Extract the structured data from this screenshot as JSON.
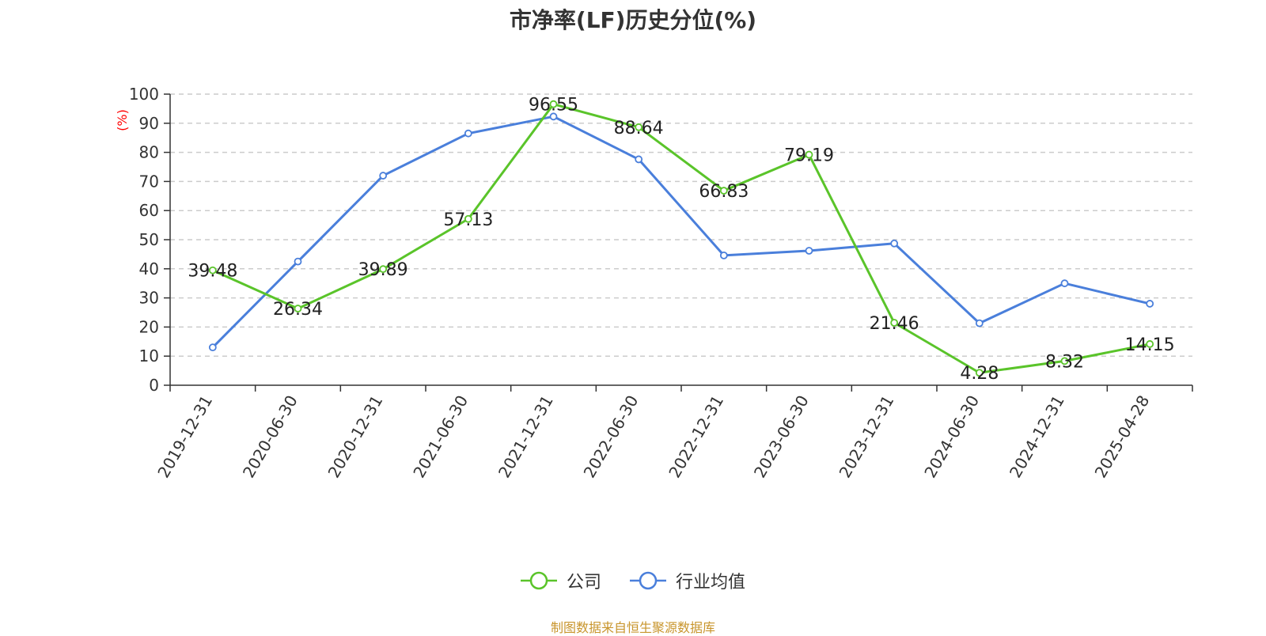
{
  "chart_data": {
    "type": "line",
    "title": "市净率(LF)历史分位(%)",
    "ylabel": "(%)",
    "ylim": [
      0,
      100
    ],
    "yticks": [
      0,
      10,
      20,
      30,
      40,
      50,
      60,
      70,
      80,
      90,
      100
    ],
    "grid": true,
    "legend_position": "bottom",
    "categories": [
      "2019-12-31",
      "2020-06-30",
      "2020-12-31",
      "2021-06-30",
      "2021-12-31",
      "2022-06-30",
      "2022-12-31",
      "2023-06-30",
      "2023-12-31",
      "2024-06-30",
      "2024-12-31",
      "2025-04-28"
    ],
    "series": [
      {
        "name": "公司",
        "color": "#5ac42a",
        "values": [
          39.48,
          26.34,
          39.89,
          57.13,
          96.55,
          88.64,
          66.83,
          79.19,
          21.46,
          4.28,
          8.32,
          14.15
        ],
        "labels": [
          "39.48",
          "26.34",
          "39.89",
          "57.13",
          "96.55",
          "88.64",
          "66.83",
          "79.19",
          "21.46",
          "4.28",
          "8.32",
          "14.15"
        ]
      },
      {
        "name": "行业均值",
        "color": "#4a7fdb",
        "values": [
          13.0,
          42.5,
          72.0,
          86.5,
          92.3,
          77.6,
          44.6,
          46.2,
          48.7,
          21.3,
          35.0,
          28.0
        ]
      }
    ]
  },
  "footer": {
    "source": "制图数据来自恒生聚源数据库"
  }
}
